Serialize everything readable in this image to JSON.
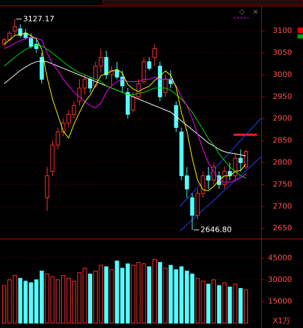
{
  "chart_data": {
    "type": "candlestick",
    "open": [
      3070,
      3080,
      3100,
      3105,
      3095,
      3085,
      3070,
      3040,
      2720,
      2780,
      2840,
      2870,
      2890,
      2910,
      2940,
      2970,
      2990,
      2975,
      3020,
      3040,
      3000,
      3010,
      2995,
      2960,
      2920,
      2950,
      2985,
      3030,
      3040,
      3020,
      2960,
      2990,
      2930,
      2870,
      2770,
      2720,
      2680,
      2730,
      2770,
      2760,
      2770,
      2750,
      2780,
      2770,
      2810,
      2790
    ],
    "high": [
      3085,
      3100,
      3127.17,
      3115,
      3105,
      3095,
      3080,
      3050,
      2790,
      2850,
      2880,
      2900,
      2920,
      2940,
      2990,
      3000,
      2995,
      3030,
      3060,
      3055,
      3020,
      3030,
      3010,
      2970,
      2960,
      2990,
      3040,
      3040,
      3070,
      3030,
      3000,
      3010,
      2940,
      2880,
      2790,
      2730,
      2740,
      2780,
      2790,
      2800,
      2780,
      2790,
      2800,
      2820,
      2830,
      2830
    ],
    "low": [
      3065,
      3075,
      3090,
      3085,
      3080,
      3060,
      3050,
      2980,
      2690,
      2770,
      2830,
      2860,
      2880,
      2900,
      2930,
      2955,
      2960,
      2970,
      3005,
      2990,
      2975,
      2990,
      2960,
      2900,
      2915,
      2945,
      2980,
      3010,
      3020,
      2940,
      2950,
      2970,
      2870,
      2760,
      2720,
      2646.8,
      2670,
      2720,
      2740,
      2750,
      2740,
      2740,
      2760,
      2760,
      2780,
      2785
    ],
    "close": [
      3080,
      3095,
      3110,
      3090,
      3085,
      3065,
      3060,
      2990,
      2770,
      2840,
      2870,
      2890,
      2910,
      2930,
      2970,
      2990,
      2970,
      3020,
      3040,
      3000,
      3010,
      2995,
      2975,
      2910,
      2950,
      2980,
      3030,
      3015,
      3060,
      2950,
      2990,
      2980,
      2880,
      2770,
      2740,
      2680,
      2730,
      2770,
      2760,
      2790,
      2750,
      2780,
      2770,
      2810,
      2800,
      2825
    ],
    "volume": [
      26000,
      30000,
      33000,
      31000,
      29000,
      28000,
      30000,
      36000,
      34000,
      32000,
      30000,
      33000,
      31000,
      29000,
      35000,
      38000,
      34000,
      36000,
      40000,
      39000,
      37000,
      43000,
      38000,
      41000,
      40000,
      42000,
      41000,
      39000,
      44000,
      42000,
      38000,
      40000,
      37000,
      39000,
      36000,
      34000,
      31000,
      29000,
      27000,
      30000,
      26000,
      28000,
      25000,
      27000,
      24000,
      23000
    ],
    "up_color": "#ff3232",
    "down_color": "#54fcfc",
    "ma": [
      {
        "color": "#ffffff",
        "values": [
          2980,
          2990,
          3000,
          3010,
          3018,
          3025,
          3030,
          3032,
          3030,
          3025,
          3020,
          3015,
          3010,
          3005,
          3000,
          2995,
          2990,
          2985,
          2980,
          2975,
          2970,
          2965,
          2960,
          2955,
          2950,
          2945,
          2940,
          2935,
          2930,
          2925,
          2920,
          2915,
          2905,
          2895,
          2885,
          2875,
          2865,
          2855,
          2845,
          2838,
          2830,
          2825,
          2822,
          2820,
          2818,
          2815
        ]
      },
      {
        "color": "#00e000",
        "values": [
          3020,
          3030,
          3040,
          3050,
          3058,
          3064,
          3068,
          3066,
          3058,
          3050,
          3040,
          3030,
          3020,
          3012,
          3005,
          3000,
          2995,
          2990,
          2985,
          2975,
          2970,
          2965,
          2960,
          2955,
          2955,
          2958,
          2960,
          2965,
          2970,
          2970,
          2970,
          2965,
          2955,
          2945,
          2930,
          2915,
          2895,
          2875,
          2855,
          2840,
          2820,
          2805,
          2790,
          2780,
          2770,
          2765
        ]
      },
      {
        "color": "#ff00ff",
        "values": [
          3060,
          3065,
          3072,
          3078,
          3083,
          3085,
          3084,
          3079,
          3050,
          3025,
          3010,
          2990,
          2975,
          2960,
          2950,
          2940,
          2930,
          2925,
          2935,
          2960,
          2975,
          2985,
          2990,
          2985,
          2985,
          2985,
          2990,
          2990,
          2995,
          2990,
          2990,
          2990,
          2975,
          2950,
          2930,
          2900,
          2865,
          2830,
          2800,
          2780,
          2760,
          2755,
          2755,
          2760,
          2765,
          2775
        ]
      },
      {
        "color": "#ffff00",
        "values": [
          3070,
          3080,
          3090,
          3092,
          3096,
          3089,
          3082,
          3058,
          2994,
          2945,
          2908,
          2872,
          2856,
          2888,
          2914,
          2938,
          2954,
          2976,
          2998,
          3004,
          3008,
          3013,
          3004,
          2978,
          2968,
          2962,
          2969,
          2974,
          2987,
          2997,
          3009,
          2999,
          2972,
          2914,
          2872,
          2810,
          2760,
          2738,
          2736,
          2746,
          2760,
          2770,
          2770,
          2780,
          2782,
          2797
        ]
      }
    ],
    "ylim": [
      2630,
      3155
    ],
    "yticks": [
      2650,
      2700,
      2750,
      2800,
      2850,
      2900,
      2950,
      3000,
      3050,
      3100
    ],
    "vlim": [
      0,
      57000
    ],
    "vticks": [
      15000,
      30000,
      45000
    ],
    "volume_unit": "X1万",
    "annotations": [
      {
        "text": "3127.17"
      },
      {
        "text": "2646.80"
      }
    ],
    "grid": true
  }
}
